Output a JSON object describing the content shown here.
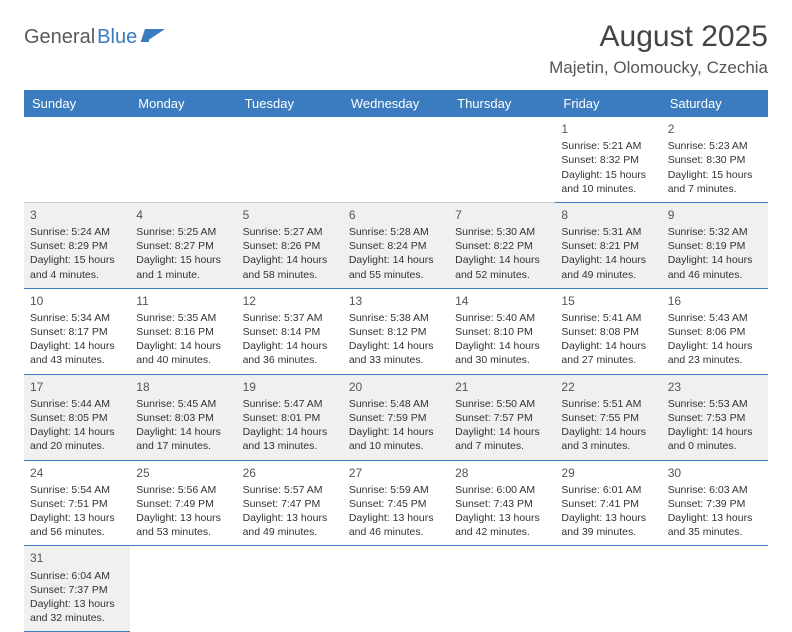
{
  "logo": {
    "part1": "General",
    "part2": "Blue"
  },
  "title": "August 2025",
  "location": "Majetin, Olomoucky, Czechia",
  "headers": [
    "Sunday",
    "Monday",
    "Tuesday",
    "Wednesday",
    "Thursday",
    "Friday",
    "Saturday"
  ],
  "colors": {
    "header_bg": "#3b7bbf",
    "header_fg": "#ffffff",
    "border": "#3b7bbf",
    "shade": "#f0f0f0",
    "text": "#333333"
  },
  "weeks": [
    [
      {
        "empty": true
      },
      {
        "empty": true
      },
      {
        "empty": true
      },
      {
        "empty": true
      },
      {
        "empty": true
      },
      {
        "day": "1",
        "sunrise": "Sunrise: 5:21 AM",
        "sunset": "Sunset: 8:32 PM",
        "daylight": "Daylight: 15 hours and 10 minutes."
      },
      {
        "day": "2",
        "sunrise": "Sunrise: 5:23 AM",
        "sunset": "Sunset: 8:30 PM",
        "daylight": "Daylight: 15 hours and 7 minutes."
      }
    ],
    [
      {
        "day": "3",
        "shaded": true,
        "sunrise": "Sunrise: 5:24 AM",
        "sunset": "Sunset: 8:29 PM",
        "daylight": "Daylight: 15 hours and 4 minutes."
      },
      {
        "day": "4",
        "shaded": true,
        "sunrise": "Sunrise: 5:25 AM",
        "sunset": "Sunset: 8:27 PM",
        "daylight": "Daylight: 15 hours and 1 minute."
      },
      {
        "day": "5",
        "shaded": true,
        "sunrise": "Sunrise: 5:27 AM",
        "sunset": "Sunset: 8:26 PM",
        "daylight": "Daylight: 14 hours and 58 minutes."
      },
      {
        "day": "6",
        "shaded": true,
        "sunrise": "Sunrise: 5:28 AM",
        "sunset": "Sunset: 8:24 PM",
        "daylight": "Daylight: 14 hours and 55 minutes."
      },
      {
        "day": "7",
        "shaded": true,
        "sunrise": "Sunrise: 5:30 AM",
        "sunset": "Sunset: 8:22 PM",
        "daylight": "Daylight: 14 hours and 52 minutes."
      },
      {
        "day": "8",
        "shaded": true,
        "sunrise": "Sunrise: 5:31 AM",
        "sunset": "Sunset: 8:21 PM",
        "daylight": "Daylight: 14 hours and 49 minutes."
      },
      {
        "day": "9",
        "shaded": true,
        "sunrise": "Sunrise: 5:32 AM",
        "sunset": "Sunset: 8:19 PM",
        "daylight": "Daylight: 14 hours and 46 minutes."
      }
    ],
    [
      {
        "day": "10",
        "sunrise": "Sunrise: 5:34 AM",
        "sunset": "Sunset: 8:17 PM",
        "daylight": "Daylight: 14 hours and 43 minutes."
      },
      {
        "day": "11",
        "sunrise": "Sunrise: 5:35 AM",
        "sunset": "Sunset: 8:16 PM",
        "daylight": "Daylight: 14 hours and 40 minutes."
      },
      {
        "day": "12",
        "sunrise": "Sunrise: 5:37 AM",
        "sunset": "Sunset: 8:14 PM",
        "daylight": "Daylight: 14 hours and 36 minutes."
      },
      {
        "day": "13",
        "sunrise": "Sunrise: 5:38 AM",
        "sunset": "Sunset: 8:12 PM",
        "daylight": "Daylight: 14 hours and 33 minutes."
      },
      {
        "day": "14",
        "sunrise": "Sunrise: 5:40 AM",
        "sunset": "Sunset: 8:10 PM",
        "daylight": "Daylight: 14 hours and 30 minutes."
      },
      {
        "day": "15",
        "sunrise": "Sunrise: 5:41 AM",
        "sunset": "Sunset: 8:08 PM",
        "daylight": "Daylight: 14 hours and 27 minutes."
      },
      {
        "day": "16",
        "sunrise": "Sunrise: 5:43 AM",
        "sunset": "Sunset: 8:06 PM",
        "daylight": "Daylight: 14 hours and 23 minutes."
      }
    ],
    [
      {
        "day": "17",
        "shaded": true,
        "sunrise": "Sunrise: 5:44 AM",
        "sunset": "Sunset: 8:05 PM",
        "daylight": "Daylight: 14 hours and 20 minutes."
      },
      {
        "day": "18",
        "shaded": true,
        "sunrise": "Sunrise: 5:45 AM",
        "sunset": "Sunset: 8:03 PM",
        "daylight": "Daylight: 14 hours and 17 minutes."
      },
      {
        "day": "19",
        "shaded": true,
        "sunrise": "Sunrise: 5:47 AM",
        "sunset": "Sunset: 8:01 PM",
        "daylight": "Daylight: 14 hours and 13 minutes."
      },
      {
        "day": "20",
        "shaded": true,
        "sunrise": "Sunrise: 5:48 AM",
        "sunset": "Sunset: 7:59 PM",
        "daylight": "Daylight: 14 hours and 10 minutes."
      },
      {
        "day": "21",
        "shaded": true,
        "sunrise": "Sunrise: 5:50 AM",
        "sunset": "Sunset: 7:57 PM",
        "daylight": "Daylight: 14 hours and 7 minutes."
      },
      {
        "day": "22",
        "shaded": true,
        "sunrise": "Sunrise: 5:51 AM",
        "sunset": "Sunset: 7:55 PM",
        "daylight": "Daylight: 14 hours and 3 minutes."
      },
      {
        "day": "23",
        "shaded": true,
        "sunrise": "Sunrise: 5:53 AM",
        "sunset": "Sunset: 7:53 PM",
        "daylight": "Daylight: 14 hours and 0 minutes."
      }
    ],
    [
      {
        "day": "24",
        "sunrise": "Sunrise: 5:54 AM",
        "sunset": "Sunset: 7:51 PM",
        "daylight": "Daylight: 13 hours and 56 minutes."
      },
      {
        "day": "25",
        "sunrise": "Sunrise: 5:56 AM",
        "sunset": "Sunset: 7:49 PM",
        "daylight": "Daylight: 13 hours and 53 minutes."
      },
      {
        "day": "26",
        "sunrise": "Sunrise: 5:57 AM",
        "sunset": "Sunset: 7:47 PM",
        "daylight": "Daylight: 13 hours and 49 minutes."
      },
      {
        "day": "27",
        "sunrise": "Sunrise: 5:59 AM",
        "sunset": "Sunset: 7:45 PM",
        "daylight": "Daylight: 13 hours and 46 minutes."
      },
      {
        "day": "28",
        "sunrise": "Sunrise: 6:00 AM",
        "sunset": "Sunset: 7:43 PM",
        "daylight": "Daylight: 13 hours and 42 minutes."
      },
      {
        "day": "29",
        "sunrise": "Sunrise: 6:01 AM",
        "sunset": "Sunset: 7:41 PM",
        "daylight": "Daylight: 13 hours and 39 minutes."
      },
      {
        "day": "30",
        "sunrise": "Sunrise: 6:03 AM",
        "sunset": "Sunset: 7:39 PM",
        "daylight": "Daylight: 13 hours and 35 minutes."
      }
    ],
    [
      {
        "day": "31",
        "shaded": true,
        "sunrise": "Sunrise: 6:04 AM",
        "sunset": "Sunset: 7:37 PM",
        "daylight": "Daylight: 13 hours and 32 minutes."
      },
      {
        "empty": true,
        "trailing": true
      },
      {
        "empty": true,
        "trailing": true
      },
      {
        "empty": true,
        "trailing": true
      },
      {
        "empty": true,
        "trailing": true
      },
      {
        "empty": true,
        "trailing": true
      },
      {
        "empty": true,
        "trailing": true
      }
    ]
  ]
}
